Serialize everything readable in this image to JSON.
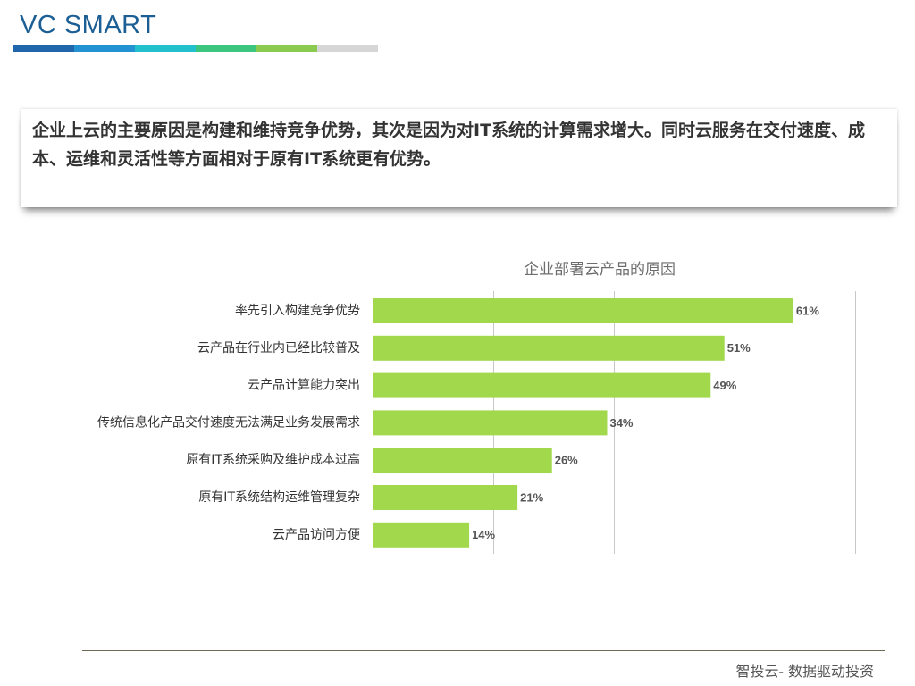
{
  "header": {
    "brand": "VC SMART",
    "bar_colors": [
      "#1f66ad",
      "#2392d3",
      "#22c0cc",
      "#3cc57f",
      "#8acb4f",
      "#d6d6d6"
    ]
  },
  "callout": {
    "text": "企业上云的主要原因是构建和维持竞争优势，其次是因为对IT系统的计算需求增大。同时云服务在交付速度、成本、运维和灵活性等方面相对于原有IT系统更有优势。"
  },
  "chart_data": {
    "type": "bar",
    "orientation": "horizontal",
    "title": "企业部署云产品的原因",
    "categories": [
      "率先引入构建竞争优势",
      "云产品在行业内已经比较普及",
      "云产品计算能力突出",
      "传统信息化产品交付速度无法满足业务发展需求",
      "原有IT系统采购及维护成本过高",
      "原有IT系统结构运维管理复杂",
      "云产品访问方便"
    ],
    "values": [
      61,
      51,
      49,
      34,
      26,
      21,
      14
    ],
    "value_labels": [
      "61%",
      "51%",
      "49%",
      "34%",
      "26%",
      "21%",
      "14%"
    ],
    "unit": "%",
    "xlim": [
      0,
      70
    ],
    "grid_step": 17.5,
    "grid": true,
    "bar_color": "#a2d94c"
  },
  "footer": {
    "text": "智投云-  数据驱动投资"
  }
}
